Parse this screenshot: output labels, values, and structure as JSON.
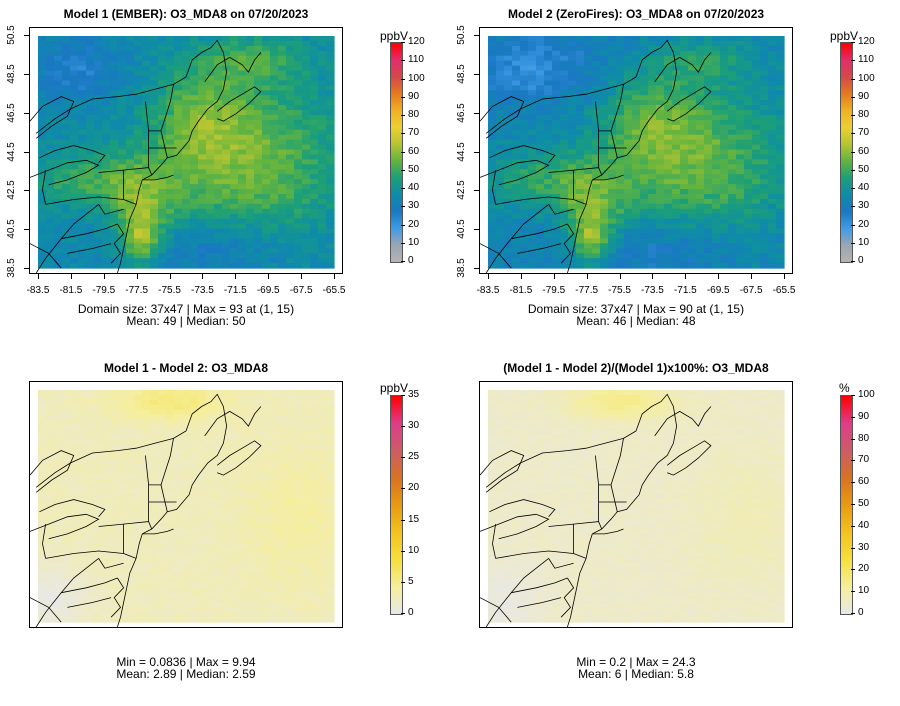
{
  "panels": [
    {
      "id": "p1",
      "title": "Model 1 (EMBER): O3_MDA8 on 07/20/2023",
      "unit": "ppbV",
      "stats_line1": "Domain size: 37x47 | Max = 93 at (1, 15)",
      "stats_line2": "Mean: 49 |  Median: 50",
      "ticks": [
        "0",
        "10",
        "20",
        "30",
        "40",
        "50",
        "60",
        "70",
        "80",
        "90",
        "100",
        "110",
        "120"
      ],
      "palette": "ozone",
      "axes": true
    },
    {
      "id": "p2",
      "title": "Model 2 (ZeroFires): O3_MDA8 on 07/20/2023",
      "unit": "ppbV",
      "stats_line1": "Domain size: 37x47 | Max = 90 at (1, 15)",
      "stats_line2": "Mean: 46 |  Median: 48",
      "ticks": [
        "0",
        "10",
        "20",
        "30",
        "40",
        "50",
        "60",
        "70",
        "80",
        "90",
        "100",
        "110",
        "120"
      ],
      "palette": "ozone",
      "axes": true
    },
    {
      "id": "p3",
      "title": "Model 1 - Model 2: O3_MDA8",
      "unit": "ppbV",
      "stats_line1": "Min = 0.0836 | Max = 9.94",
      "stats_line2": "Mean: 2.89 |  Median: 2.59",
      "ticks": [
        "0",
        "5",
        "10",
        "15",
        "20",
        "25",
        "30",
        "35"
      ],
      "palette": "diff",
      "axes": false
    },
    {
      "id": "p4",
      "title": "(Model 1 - Model 2)/(Model 1)x100%: O3_MDA8",
      "unit": "%",
      "stats_line1": "Min = 0.2 | Max = 24.3",
      "stats_line2": "Mean: 6 |  Median: 5.8",
      "ticks": [
        "0",
        "10",
        "20",
        "30",
        "40",
        "50",
        "60",
        "70",
        "80",
        "90",
        "100"
      ],
      "palette": "diff",
      "axes": false
    }
  ],
  "x_axis_labels": [
    "-83.5",
    "-81.5",
    "-79.5",
    "-77.5",
    "-75.5",
    "-73.5",
    "-71.5",
    "-69.5",
    "-67.5",
    "-65.5"
  ],
  "y_axis_labels": [
    "38.5",
    "40.5",
    "42.5",
    "44.5",
    "46.5",
    "48.5",
    "50.5"
  ],
  "colors": {
    "ozone_palette": [
      "#b3b3b3",
      "#9aa6b4",
      "#3e9be8",
      "#1a78c2",
      "#0e8ca8",
      "#1c9f78",
      "#63b43f",
      "#b6c531",
      "#ecd031",
      "#f0b023",
      "#e5791f",
      "#d5484a",
      "#e22d6d",
      "#ff0000"
    ],
    "diff_palette": [
      "#e8e8e8",
      "#f5ee9c",
      "#f6df3c",
      "#f3c21f",
      "#e89a10",
      "#d87223",
      "#cd5c66",
      "#df3c8a",
      "#ff0000"
    ],
    "map_lines": "#000000"
  }
}
